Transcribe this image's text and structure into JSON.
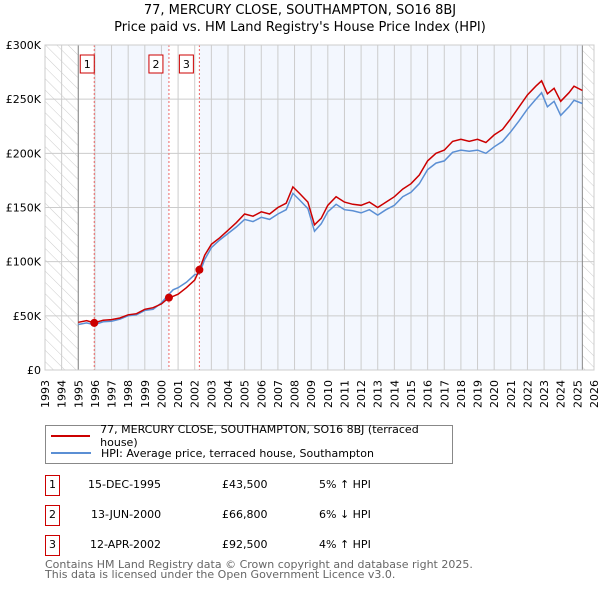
{
  "chart_data": {
    "type": "line",
    "title": "77, MERCURY CLOSE, SOUTHAMPTON, SO16 8BJ",
    "subtitle": "Price paid vs. HM Land Registry's House Price Index (HPI)",
    "xlim": [
      1993,
      2026
    ],
    "ylim": [
      0,
      300000
    ],
    "x_ticks": [
      "1993",
      "1994",
      "1995",
      "1996",
      "1997",
      "1998",
      "1999",
      "2000",
      "2001",
      "2002",
      "2003",
      "2004",
      "2005",
      "2006",
      "2007",
      "2008",
      "2009",
      "2010",
      "2011",
      "2012",
      "2013",
      "2014",
      "2015",
      "2016",
      "2017",
      "2018",
      "2019",
      "2020",
      "2021",
      "2022",
      "2023",
      "2024",
      "2025",
      "2026"
    ],
    "y_ticks": [
      {
        "v": 0,
        "label": "£0"
      },
      {
        "v": 50000,
        "label": "£50K"
      },
      {
        "v": 100000,
        "label": "£100K"
      },
      {
        "v": 150000,
        "label": "£150K"
      },
      {
        "v": 200000,
        "label": "£200K"
      },
      {
        "v": 250000,
        "label": "£250K"
      },
      {
        "v": 300000,
        "label": "£300K"
      }
    ],
    "grid": true,
    "hatched_ranges": [
      [
        1993,
        1995
      ],
      [
        2025.3,
        2026
      ]
    ],
    "series": [
      {
        "name": "77, MERCURY CLOSE, SOUTHAMPTON, SO16 8BJ (terraced house)",
        "color": "#cc0000",
        "points": [
          [
            1995,
            44000
          ],
          [
            1995.5,
            45500
          ],
          [
            1995.96,
            43500
          ],
          [
            1996.5,
            46000
          ],
          [
            1997,
            46500
          ],
          [
            1997.5,
            48000
          ],
          [
            1998,
            51000
          ],
          [
            1998.5,
            52000
          ],
          [
            1999,
            56000
          ],
          [
            1999.5,
            57500
          ],
          [
            2000,
            61000
          ],
          [
            2000.45,
            66800
          ],
          [
            2000.7,
            68000
          ],
          [
            2001,
            70000
          ],
          [
            2001.5,
            76000
          ],
          [
            2002,
            83000
          ],
          [
            2002.28,
            92500
          ],
          [
            2002.6,
            106000
          ],
          [
            2003,
            116000
          ],
          [
            2003.5,
            122000
          ],
          [
            2004,
            129000
          ],
          [
            2004.5,
            136000
          ],
          [
            2005,
            144000
          ],
          [
            2005.5,
            142000
          ],
          [
            2006,
            146000
          ],
          [
            2006.5,
            144000
          ],
          [
            2007,
            150000
          ],
          [
            2007.5,
            154000
          ],
          [
            2007.9,
            169000
          ],
          [
            2008.3,
            163000
          ],
          [
            2008.8,
            155000
          ],
          [
            2009.2,
            134000
          ],
          [
            2009.6,
            140000
          ],
          [
            2010,
            152000
          ],
          [
            2010.5,
            160000
          ],
          [
            2011,
            155000
          ],
          [
            2011.5,
            153000
          ],
          [
            2012,
            152000
          ],
          [
            2012.5,
            155000
          ],
          [
            2013,
            150000
          ],
          [
            2013.5,
            155000
          ],
          [
            2014,
            160000
          ],
          [
            2014.5,
            167000
          ],
          [
            2015,
            172000
          ],
          [
            2015.5,
            180000
          ],
          [
            2016,
            193000
          ],
          [
            2016.5,
            200000
          ],
          [
            2017,
            203000
          ],
          [
            2017.5,
            211000
          ],
          [
            2018,
            213000
          ],
          [
            2018.5,
            211000
          ],
          [
            2019,
            213000
          ],
          [
            2019.5,
            210000
          ],
          [
            2020,
            217000
          ],
          [
            2020.5,
            222000
          ],
          [
            2021,
            232000
          ],
          [
            2021.5,
            243000
          ],
          [
            2022,
            254000
          ],
          [
            2022.5,
            262000
          ],
          [
            2022.85,
            267000
          ],
          [
            2023.2,
            255000
          ],
          [
            2023.6,
            260000
          ],
          [
            2024,
            248000
          ],
          [
            2024.5,
            256000
          ],
          [
            2024.8,
            262000
          ],
          [
            2025.3,
            258000
          ]
        ]
      },
      {
        "name": "HPI: Average price, terraced house, Southampton",
        "color": "#5b8fd4",
        "points": [
          [
            1995,
            42000
          ],
          [
            1995.5,
            43500
          ],
          [
            1995.96,
            41800
          ],
          [
            1996.5,
            44500
          ],
          [
            1997,
            45000
          ],
          [
            1997.5,
            47000
          ],
          [
            1998,
            50000
          ],
          [
            1998.5,
            51000
          ],
          [
            1999,
            55000
          ],
          [
            1999.5,
            56000
          ],
          [
            2000,
            62000
          ],
          [
            2000.45,
            70000
          ],
          [
            2000.7,
            74000
          ],
          [
            2001,
            76000
          ],
          [
            2001.5,
            81000
          ],
          [
            2002,
            88000
          ],
          [
            2002.28,
            89000
          ],
          [
            2002.6,
            102000
          ],
          [
            2003,
            113000
          ],
          [
            2003.5,
            120000
          ],
          [
            2004,
            126000
          ],
          [
            2004.5,
            132000
          ],
          [
            2005,
            139000
          ],
          [
            2005.5,
            137000
          ],
          [
            2006,
            141000
          ],
          [
            2006.5,
            139000
          ],
          [
            2007,
            144000
          ],
          [
            2007.5,
            148000
          ],
          [
            2007.9,
            163000
          ],
          [
            2008.3,
            157000
          ],
          [
            2008.8,
            149000
          ],
          [
            2009.2,
            128000
          ],
          [
            2009.6,
            135000
          ],
          [
            2010,
            146000
          ],
          [
            2010.5,
            153000
          ],
          [
            2011,
            148000
          ],
          [
            2011.5,
            147000
          ],
          [
            2012,
            145000
          ],
          [
            2012.5,
            148000
          ],
          [
            2013,
            143000
          ],
          [
            2013.5,
            148000
          ],
          [
            2014,
            152000
          ],
          [
            2014.5,
            160000
          ],
          [
            2015,
            164000
          ],
          [
            2015.5,
            172000
          ],
          [
            2016,
            185000
          ],
          [
            2016.5,
            191000
          ],
          [
            2017,
            193000
          ],
          [
            2017.5,
            201000
          ],
          [
            2018,
            203000
          ],
          [
            2018.5,
            202000
          ],
          [
            2019,
            203000
          ],
          [
            2019.5,
            200000
          ],
          [
            2020,
            206000
          ],
          [
            2020.5,
            211000
          ],
          [
            2021,
            220000
          ],
          [
            2021.5,
            230000
          ],
          [
            2022,
            241000
          ],
          [
            2022.5,
            250000
          ],
          [
            2022.85,
            256000
          ],
          [
            2023.2,
            243000
          ],
          [
            2023.6,
            248000
          ],
          [
            2024,
            235000
          ],
          [
            2024.5,
            243000
          ],
          [
            2024.8,
            249000
          ],
          [
            2025.3,
            246000
          ]
        ]
      }
    ],
    "sales": [
      {
        "id": "1",
        "x": 1995.96,
        "price": 43500
      },
      {
        "id": "2",
        "x": 2000.45,
        "price": 66800
      },
      {
        "id": "3",
        "x": 2002.28,
        "price": 92500
      }
    ]
  },
  "legend": {
    "property": "77, MERCURY CLOSE, SOUTHAMPTON, SO16 8BJ (terraced house)",
    "hpi": "HPI: Average price, terraced house, Southampton"
  },
  "transactions": [
    {
      "id": "1",
      "date": "15-DEC-1995",
      "price": "£43,500",
      "hpi": "5% ↑ HPI"
    },
    {
      "id": "2",
      "date": "13-JUN-2000",
      "price": "£66,800",
      "hpi": "6% ↓ HPI"
    },
    {
      "id": "3",
      "date": "12-APR-2002",
      "price": "£92,500",
      "hpi": "4% ↑ HPI"
    }
  ],
  "footer": {
    "line1": "Contains HM Land Registry data © Crown copyright and database right 2025.",
    "line2": "This data is licensed under the Open Government Licence v3.0."
  }
}
